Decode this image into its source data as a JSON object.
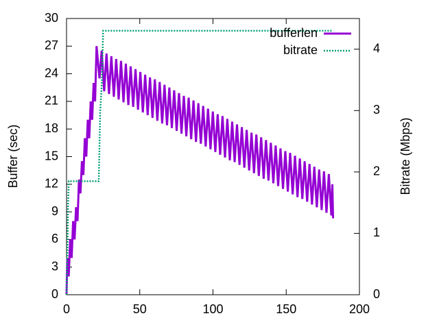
{
  "chart_data": {
    "type": "line",
    "ylabel": "Buffer (sec)",
    "y2label": "Bitrate (Mbps)",
    "xlim": [
      0,
      200
    ],
    "xticks": [
      0,
      50,
      100,
      150,
      200
    ],
    "ylim": [
      0,
      30
    ],
    "yticks": [
      0,
      3,
      6,
      9,
      12,
      15,
      18,
      21,
      24,
      27,
      30
    ],
    "y2lim": [
      0,
      4.5
    ],
    "y2ticks": [
      0,
      1,
      2,
      3,
      4
    ],
    "legend": "upper right",
    "series": [
      {
        "name": "bufferlen",
        "color": "#9400d3",
        "axis": "y",
        "x": [
          0,
          0.5,
          1.5,
          2.5,
          3.5,
          4.5,
          5.5,
          6.5,
          7.5,
          8.5,
          9.5,
          10.5,
          11.5,
          12.5,
          13.5,
          14.5,
          15.5,
          16.5,
          17.5,
          18.5,
          19.5,
          20.5,
          22.5,
          24.0,
          25.7,
          27.3,
          29.0,
          30.6,
          32.3,
          33.9,
          35.6,
          37.2,
          38.9,
          40.5,
          42.2,
          43.8,
          45.5,
          47.1,
          48.8,
          50.4,
          52.1,
          53.7,
          55.4,
          57.0,
          58.7,
          60.3,
          62.0,
          63.6,
          65.3,
          66.9,
          68.6,
          70.2,
          71.9,
          73.5,
          75.2,
          76.8,
          78.5,
          80.1,
          81.8,
          83.4,
          85.1,
          86.7,
          88.4,
          90.0,
          91.7,
          93.3,
          95.0,
          96.6,
          98.3,
          99.9,
          101.6,
          103.2,
          104.9,
          106.5,
          108.2,
          109.8,
          111.5,
          113.1,
          114.8,
          116.4,
          118.1,
          119.7,
          121.4,
          123.0,
          124.7,
          126.3,
          128.0,
          129.6,
          131.3,
          132.9,
          134.6,
          136.2,
          137.9,
          139.5,
          141.2,
          142.8,
          144.5,
          146.1,
          147.8,
          149.4,
          151.1,
          152.7,
          154.4,
          156.0,
          157.7,
          159.3,
          161.0,
          162.6,
          164.3,
          165.9,
          167.6,
          169.2,
          170.9,
          172.5,
          174.2,
          175.8,
          177.5,
          179.1,
          180.8,
          181.5,
          182.0
        ],
        "values": [
          0,
          4,
          2,
          6,
          4,
          8,
          6,
          9.5,
          8,
          12.5,
          11,
          14.5,
          13,
          17,
          15,
          19,
          17,
          21,
          19,
          23,
          21,
          27,
          23.5,
          26.5,
          22.1,
          26.2,
          21.8,
          25.9,
          21.5,
          25.6,
          21.2,
          25.4,
          20.9,
          25.1,
          20.6,
          24.8,
          20.4,
          24.5,
          20.1,
          24.2,
          19.8,
          23.9,
          19.5,
          23.6,
          19.2,
          23.4,
          18.9,
          23.1,
          18.6,
          22.8,
          18.4,
          22.5,
          18.1,
          22.2,
          17.8,
          21.9,
          17.5,
          21.6,
          17.2,
          21.4,
          16.9,
          21.1,
          16.6,
          20.8,
          16.4,
          20.5,
          16.1,
          20.2,
          15.8,
          19.9,
          15.5,
          19.6,
          15.2,
          19.4,
          14.9,
          19.1,
          14.6,
          18.8,
          14.4,
          18.5,
          14.1,
          18.2,
          13.8,
          17.9,
          13.5,
          17.6,
          13.2,
          17.4,
          12.9,
          17.1,
          12.6,
          16.8,
          12.4,
          16.5,
          12.1,
          16.2,
          11.8,
          15.9,
          11.5,
          15.6,
          11.2,
          15.4,
          10.9,
          15.1,
          10.6,
          14.8,
          10.4,
          14.5,
          10.1,
          14.2,
          9.8,
          13.9,
          9.5,
          13.6,
          9.2,
          13.4,
          8.9,
          13.1,
          8.6,
          12.0,
          8.3
        ]
      },
      {
        "name": "bitrate",
        "color": "#009e73",
        "axis": "y2",
        "x": [
          0,
          0.5,
          1,
          1.5,
          21,
          22,
          23,
          24,
          25,
          181
        ],
        "values": [
          0,
          0.6,
          1.4,
          1.85,
          1.85,
          1.85,
          3.0,
          3.4,
          4.3,
          4.3
        ]
      }
    ]
  }
}
